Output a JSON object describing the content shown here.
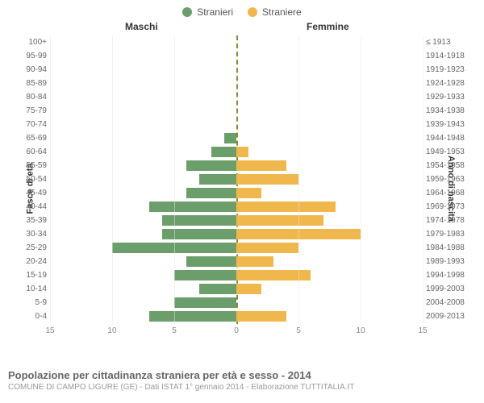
{
  "type": "population-pyramid",
  "legend": [
    {
      "label": "Stranieri",
      "color": "#6b9e6b"
    },
    {
      "label": "Straniere",
      "color": "#f0b84c"
    }
  ],
  "headers": {
    "left": "Maschi",
    "right": "Femmine"
  },
  "yaxis_left_title": "Fasce di età",
  "yaxis_right_title": "Anno di nascita",
  "xaxis": {
    "max": 15,
    "ticks_left": [
      15,
      10,
      5,
      0
    ],
    "ticks_right": [
      0,
      5,
      10,
      15
    ]
  },
  "grid_color": "#e6e6e6",
  "centerline_color": "#8a8a36",
  "background_color": "#ffffff",
  "bar_colors": {
    "male": "#6b9e6b",
    "female": "#f0b84c"
  },
  "rows": [
    {
      "age": "100+",
      "birth": "≤ 1913",
      "m": 0,
      "f": 0
    },
    {
      "age": "95-99",
      "birth": "1914-1918",
      "m": 0,
      "f": 0
    },
    {
      "age": "90-94",
      "birth": "1919-1923",
      "m": 0,
      "f": 0
    },
    {
      "age": "85-89",
      "birth": "1924-1928",
      "m": 0,
      "f": 0
    },
    {
      "age": "80-84",
      "birth": "1929-1933",
      "m": 0,
      "f": 0
    },
    {
      "age": "75-79",
      "birth": "1934-1938",
      "m": 0,
      "f": 0
    },
    {
      "age": "70-74",
      "birth": "1939-1943",
      "m": 0,
      "f": 0
    },
    {
      "age": "65-69",
      "birth": "1944-1948",
      "m": 1,
      "f": 0
    },
    {
      "age": "60-64",
      "birth": "1949-1953",
      "m": 2,
      "f": 1
    },
    {
      "age": "55-59",
      "birth": "1954-1958",
      "m": 4,
      "f": 4
    },
    {
      "age": "50-54",
      "birth": "1959-1963",
      "m": 3,
      "f": 5
    },
    {
      "age": "45-49",
      "birth": "1964-1968",
      "m": 4,
      "f": 2
    },
    {
      "age": "40-44",
      "birth": "1969-1973",
      "m": 7,
      "f": 8
    },
    {
      "age": "35-39",
      "birth": "1974-1978",
      "m": 6,
      "f": 7
    },
    {
      "age": "30-34",
      "birth": "1979-1983",
      "m": 6,
      "f": 10
    },
    {
      "age": "25-29",
      "birth": "1984-1988",
      "m": 10,
      "f": 5
    },
    {
      "age": "20-24",
      "birth": "1989-1993",
      "m": 4,
      "f": 3
    },
    {
      "age": "15-19",
      "birth": "1994-1998",
      "m": 5,
      "f": 6
    },
    {
      "age": "10-14",
      "birth": "1999-2003",
      "m": 3,
      "f": 2
    },
    {
      "age": "5-9",
      "birth": "2004-2008",
      "m": 5,
      "f": 0
    },
    {
      "age": "0-4",
      "birth": "2009-2013",
      "m": 7,
      "f": 4
    }
  ],
  "caption": {
    "title": "Popolazione per cittadinanza straniera per età e sesso - 2014",
    "subtitle": "COMUNE DI CAMPO LIGURE (GE) - Dati ISTAT 1° gennaio 2014 - Elaborazione TUTTITALIA.IT"
  }
}
